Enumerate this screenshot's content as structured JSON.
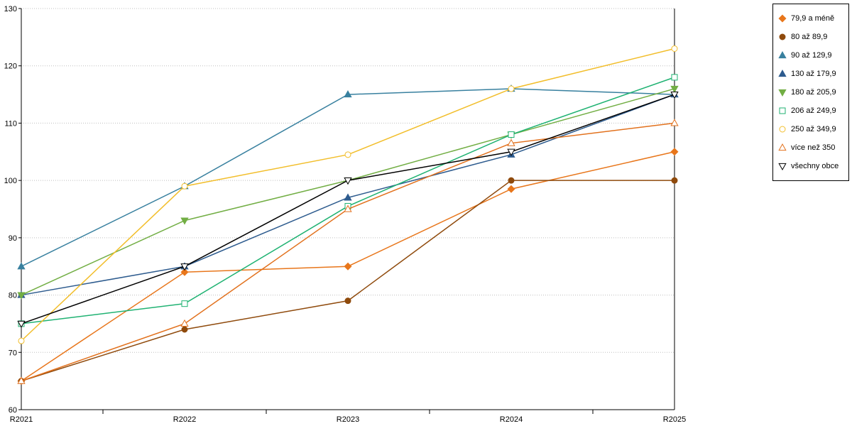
{
  "chart_data": {
    "type": "line",
    "title": "",
    "xlabel": "",
    "ylabel": "",
    "x": [
      "R2021",
      "R2022",
      "R2023",
      "R2024",
      "R2025"
    ],
    "ylim": [
      60,
      130
    ],
    "ytick_step": 10,
    "grid": true,
    "legend_position": "right-top",
    "series": [
      {
        "name": "79,9 a méně",
        "color": "#E8761B",
        "marker": "diamond",
        "fill": "solid",
        "values": [
          65,
          84,
          85,
          98.5,
          105
        ]
      },
      {
        "name": "80 až 89,9",
        "color": "#8F4A0C",
        "marker": "circle",
        "fill": "solid",
        "values": [
          65,
          74,
          79,
          100,
          100
        ]
      },
      {
        "name": "90 až 129,9",
        "color": "#38809F",
        "marker": "triangle-up",
        "fill": "solid",
        "values": [
          85,
          99,
          115,
          116,
          115
        ]
      },
      {
        "name": "130 až 179,9",
        "color": "#2D5B8E",
        "marker": "triangle-up",
        "fill": "solid",
        "values": [
          80,
          85,
          97,
          104.5,
          115
        ]
      },
      {
        "name": "180 až 205,9",
        "color": "#72AE44",
        "marker": "triangle-down",
        "fill": "solid",
        "values": [
          80,
          93,
          100,
          108,
          116
        ]
      },
      {
        "name": "206 až 249,9",
        "color": "#1FB272",
        "marker": "square",
        "fill": "open",
        "values": [
          75,
          78.5,
          95.5,
          108,
          118
        ]
      },
      {
        "name": "250 až 349,9",
        "color": "#F2BE2B",
        "marker": "circle",
        "fill": "open",
        "values": [
          72,
          99,
          104.5,
          116,
          123
        ]
      },
      {
        "name": "více než 350",
        "color": "#E2711D",
        "marker": "triangle-up",
        "fill": "open",
        "values": [
          65,
          75,
          95,
          106.5,
          110
        ]
      },
      {
        "name": "všechny obce",
        "color": "#000000",
        "marker": "triangle-down",
        "fill": "open",
        "values": [
          75,
          85,
          100,
          105,
          115
        ]
      }
    ]
  }
}
